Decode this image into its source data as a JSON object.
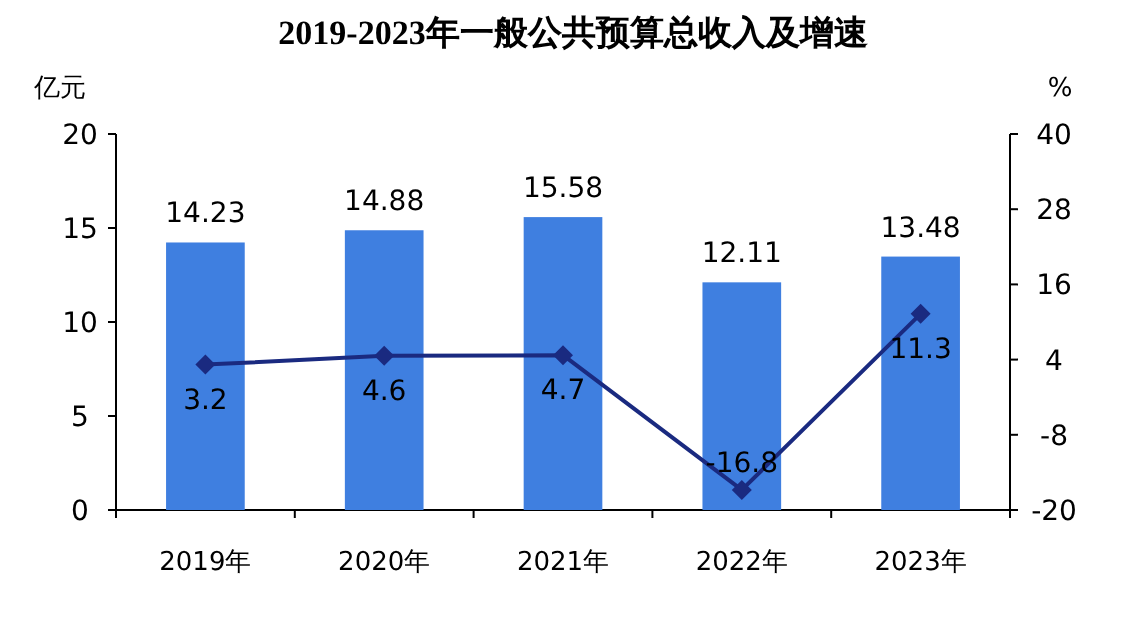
{
  "chart_data": {
    "type": "bar",
    "title": "2019-2023年一般公共预算总收入及增速",
    "ylabel": "亿元",
    "y2label": "%",
    "categories": [
      "2019年",
      "2020年",
      "2021年",
      "2022年",
      "2023年"
    ],
    "series": [
      {
        "color": "#3f7fe0",
        "values": [
          14.23,
          14.88,
          15.58,
          12.11,
          13.48
        ]
      },
      {
        "type": "line",
        "axis": "y2",
        "color": "#1a2a80",
        "marker": "diamond",
        "values": [
          3.2,
          4.6,
          4.7,
          -16.8,
          11.3
        ]
      }
    ],
    "ylim": [
      0,
      20
    ],
    "yticks": [
      0,
      5,
      10,
      15,
      20
    ],
    "y2lim": [
      -20,
      40
    ],
    "y2ticks": [
      -20,
      -8,
      4,
      16,
      28,
      40
    ],
    "data_labels": true,
    "grid": false
  }
}
